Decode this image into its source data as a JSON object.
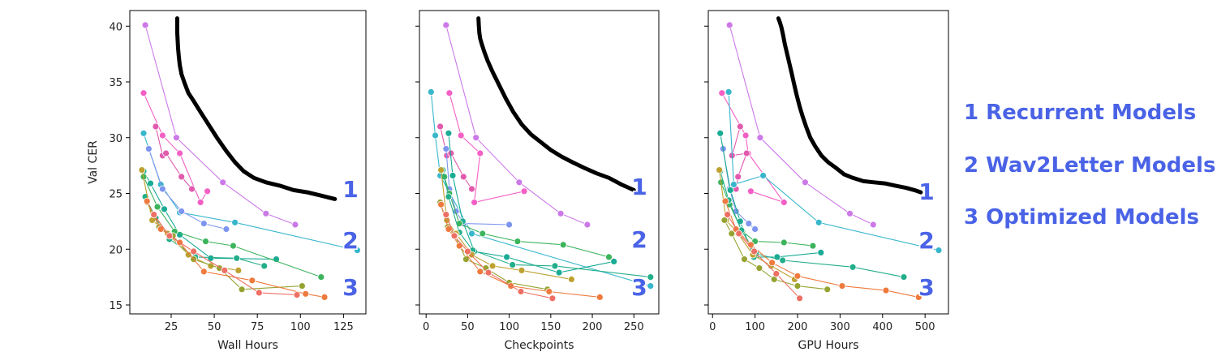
{
  "chart_data": [
    {
      "type": "line",
      "xlabel": "Wall Hours",
      "ylabel": "Val CER",
      "xlim": [
        1,
        138
      ],
      "ylim": [
        14.2,
        41.4
      ],
      "xticks": [
        25,
        50,
        75,
        100,
        125
      ],
      "yticks": [
        15,
        20,
        25,
        30,
        35,
        40
      ],
      "frontier": {
        "color": "#000000",
        "x": [
          28.5,
          28.5,
          29,
          29.5,
          30,
          31,
          33,
          35,
          38,
          42,
          47,
          52,
          57,
          62,
          67,
          73,
          80,
          88,
          96,
          104,
          112,
          120
        ],
        "y": [
          40.7,
          39.5,
          38.0,
          37.2,
          36.5,
          35.7,
          34.8,
          34.0,
          33.3,
          32.3,
          31.1,
          29.9,
          28.8,
          27.8,
          27.0,
          26.4,
          26.0,
          25.7,
          25.3,
          25.1,
          24.8,
          24.5
        ]
      },
      "series": [
        {
          "color": "#cc79e8",
          "x": [
            10,
            28,
            55,
            80,
            97
          ],
          "y": [
            40.1,
            30.0,
            26.0,
            23.2,
            22.2
          ]
        },
        {
          "color": "#f45fc5",
          "x": [
            9,
            20,
            30,
            42,
            46
          ],
          "y": [
            34.0,
            30.2,
            28.6,
            24.2,
            25.2
          ]
        },
        {
          "color": "#e15aae",
          "x": [
            16,
            20,
            22,
            31,
            37
          ],
          "y": [
            31.0,
            28.4,
            28.6,
            26.5,
            25.4
          ]
        },
        {
          "color": "#38b6cc",
          "x": [
            9,
            19,
            30,
            62,
            133
          ],
          "y": [
            30.4,
            25.8,
            23.3,
            22.4,
            19.9
          ]
        },
        {
          "color": "#7d95ee",
          "x": [
            12,
            20,
            31,
            44,
            57
          ],
          "y": [
            29.0,
            25.4,
            23.4,
            22.3,
            21.8
          ]
        },
        {
          "color": "#1aab95",
          "x": [
            9,
            13,
            21,
            30,
            48,
            86
          ],
          "y": [
            27.0,
            25.9,
            23.6,
            21.3,
            19.2,
            19.1
          ]
        },
        {
          "color": "#3cb45c",
          "x": [
            9,
            17,
            27,
            45,
            61,
            112
          ],
          "y": [
            26.5,
            23.8,
            21.6,
            20.7,
            20.3,
            17.5
          ]
        },
        {
          "color": "#23ae8a",
          "x": [
            10,
            16,
            24,
            39,
            63,
            79
          ],
          "y": [
            24.7,
            22.8,
            20.9,
            19.3,
            19.2,
            18.5
          ]
        },
        {
          "color": "#bea131",
          "x": [
            8,
            14,
            23,
            35,
            48,
            64
          ],
          "y": [
            27.1,
            22.6,
            21.4,
            19.5,
            18.5,
            18.1
          ]
        },
        {
          "color": "#96a331",
          "x": [
            11,
            18,
            26,
            38,
            53,
            66,
            101
          ],
          "y": [
            24.2,
            22.0,
            21.2,
            19.1,
            18.3,
            16.4,
            16.7
          ]
        },
        {
          "color": "#ee7a3d",
          "x": [
            11,
            19,
            30,
            44,
            72,
            103,
            114
          ],
          "y": [
            24.3,
            21.8,
            20.6,
            18.0,
            17.2,
            16.0,
            15.7
          ]
        },
        {
          "color": "#ee6f64",
          "x": [
            15,
            24,
            38,
            56,
            76,
            98
          ],
          "y": [
            23.1,
            21.2,
            19.8,
            18.1,
            16.1,
            15.9
          ]
        }
      ]
    },
    {
      "type": "line",
      "xlabel": "Checkpoints",
      "ylabel": "",
      "xlim": [
        -8,
        280
      ],
      "ylim": [
        14.2,
        41.4
      ],
      "xticks": [
        0,
        50,
        100,
        150,
        200,
        250
      ],
      "yticks": [
        15,
        20,
        25,
        30,
        35,
        40
      ],
      "frontier": {
        "color": "#000000",
        "x": [
          63,
          63.5,
          64,
          65,
          67,
          70,
          74,
          80,
          88,
          96,
          105,
          115,
          126,
          138,
          150,
          163,
          176,
          190,
          205,
          220,
          235,
          250
        ],
        "y": [
          40.7,
          40.0,
          39.4,
          38.9,
          38.4,
          37.7,
          36.9,
          35.9,
          34.7,
          33.5,
          32.3,
          31.2,
          30.3,
          29.6,
          28.9,
          28.3,
          27.8,
          27.3,
          26.8,
          26.4,
          25.8,
          25.3
        ]
      },
      "series": [
        {
          "color": "#cc79e8",
          "x": [
            24,
            60,
            112,
            162,
            194
          ],
          "y": [
            40.1,
            30.0,
            26.0,
            23.2,
            22.2
          ]
        },
        {
          "color": "#f45fc5",
          "x": [
            28,
            42,
            65,
            58,
            118
          ],
          "y": [
            34.0,
            30.2,
            28.6,
            24.2,
            25.2
          ]
        },
        {
          "color": "#e15aae",
          "x": [
            17,
            25,
            30,
            45,
            55
          ],
          "y": [
            31.0,
            28.4,
            28.6,
            26.5,
            25.4
          ]
        },
        {
          "color": "#38b6cc",
          "x": [
            6,
            11,
            17,
            55,
            270
          ],
          "y": [
            34.1,
            30.2,
            26.6,
            21.4,
            16.7
          ]
        },
        {
          "color": "#7d95ee",
          "x": [
            24,
            28,
            36,
            45,
            100
          ],
          "y": [
            29.0,
            25.4,
            23.4,
            22.3,
            22.2
          ]
        },
        {
          "color": "#1aab95",
          "x": [
            27,
            32,
            44,
            58,
            97,
            160,
            226
          ],
          "y": [
            30.4,
            26.6,
            22.5,
            19.8,
            19.3,
            17.9,
            18.9
          ]
        },
        {
          "color": "#3cb45c",
          "x": [
            22,
            28,
            40,
            68,
            110,
            165,
            220
          ],
          "y": [
            26.5,
            25.0,
            22.3,
            21.4,
            20.7,
            20.4,
            19.3
          ]
        },
        {
          "color": "#23ae8a",
          "x": [
            20,
            27,
            40,
            56,
            104,
            155,
            270
          ],
          "y": [
            27.1,
            24.7,
            21.5,
            19.9,
            18.6,
            18.5,
            17.5
          ]
        },
        {
          "color": "#bea131",
          "x": [
            18,
            25,
            36,
            55,
            80,
            115,
            175
          ],
          "y": [
            27.1,
            22.6,
            21.4,
            19.5,
            18.5,
            18.1,
            17.3
          ]
        },
        {
          "color": "#96a331",
          "x": [
            17,
            26,
            35,
            48,
            72,
            100,
            146
          ],
          "y": [
            24.2,
            22.0,
            21.2,
            19.1,
            18.3,
            17.0,
            16.4
          ]
        },
        {
          "color": "#ee7a3d",
          "x": [
            18,
            27,
            40,
            65,
            102,
            148,
            209
          ],
          "y": [
            24.0,
            21.8,
            20.3,
            18.0,
            16.7,
            16.2,
            15.7
          ]
        },
        {
          "color": "#ee6f64",
          "x": [
            24,
            34,
            50,
            75,
            114,
            152
          ],
          "y": [
            23.1,
            21.2,
            19.8,
            17.9,
            16.2,
            15.6
          ]
        }
      ]
    },
    {
      "type": "line",
      "xlabel": "GPU Hours",
      "ylabel": "",
      "xlim": [
        -10,
        555
      ],
      "ylim": [
        14.2,
        41.4
      ],
      "xticks": [
        0,
        100,
        200,
        300,
        400,
        500
      ],
      "yticks": [
        15,
        20,
        25,
        30,
        35,
        40
      ],
      "frontier": {
        "color": "#000000",
        "x": [
          155,
          158,
          162,
          166,
          170,
          175,
          180,
          186,
          192,
          198,
          205,
          212,
          220,
          230,
          242,
          256,
          272,
          290,
          310,
          330,
          355,
          380,
          405,
          430,
          455,
          475,
          490
        ],
        "y": [
          40.7,
          40.4,
          39.9,
          39.2,
          38.4,
          37.6,
          36.8,
          35.8,
          34.8,
          33.8,
          32.8,
          31.9,
          31.0,
          30.0,
          29.2,
          28.4,
          27.8,
          27.3,
          26.7,
          26.4,
          26.1,
          26.0,
          25.9,
          25.7,
          25.5,
          25.3,
          25.1
        ]
      },
      "series": [
        {
          "color": "#cc79e8",
          "x": [
            40,
            112,
            218,
            323,
            378
          ],
          "y": [
            40.1,
            30.0,
            26.0,
            23.2,
            22.2
          ]
        },
        {
          "color": "#f45fc5",
          "x": [
            22,
            78,
            84,
            168,
            90
          ],
          "y": [
            34.0,
            30.2,
            28.6,
            24.2,
            25.2
          ]
        },
        {
          "color": "#e15aae",
          "x": [
            65,
            46,
            80,
            60,
            55
          ],
          "y": [
            31.0,
            28.4,
            28.6,
            26.5,
            25.4
          ]
        },
        {
          "color": "#38b6cc",
          "x": [
            38,
            50,
            119,
            250,
            532
          ],
          "y": [
            34.1,
            25.8,
            26.6,
            22.4,
            19.9
          ]
        },
        {
          "color": "#7d95ee",
          "x": [
            25,
            40,
            55,
            85,
            100
          ],
          "y": [
            29.0,
            25.4,
            23.4,
            22.3,
            21.8
          ]
        },
        {
          "color": "#1aab95",
          "x": [
            18,
            42,
            65,
            97,
            152,
            255
          ],
          "y": [
            30.4,
            25.3,
            22.5,
            19.3,
            19.3,
            19.7
          ]
        },
        {
          "color": "#3cb45c",
          "x": [
            20,
            40,
            70,
            100,
            168,
            236
          ],
          "y": [
            26.0,
            24.0,
            21.6,
            20.7,
            20.6,
            20.3
          ]
        },
        {
          "color": "#23ae8a",
          "x": [
            18,
            38,
            68,
            102,
            165,
            330,
            450
          ],
          "y": [
            27.0,
            24.4,
            21.7,
            19.6,
            19.0,
            18.4,
            17.5
          ]
        },
        {
          "color": "#bea131",
          "x": [
            16,
            32,
            60,
            95,
            138,
            193
          ],
          "y": [
            27.1,
            22.6,
            21.4,
            19.5,
            18.5,
            17.3
          ]
        },
        {
          "color": "#96a331",
          "x": [
            28,
            45,
            75,
            110,
            145,
            200,
            270
          ],
          "y": [
            22.6,
            21.4,
            19.1,
            18.3,
            17.3,
            16.7,
            16.4
          ]
        },
        {
          "color": "#ee7a3d",
          "x": [
            30,
            55,
            90,
            140,
            200,
            305,
            408,
            485
          ],
          "y": [
            24.3,
            21.8,
            20.4,
            18.8,
            17.6,
            16.7,
            16.3,
            15.7
          ]
        },
        {
          "color": "#ee6f64",
          "x": [
            35,
            62,
            98,
            150,
            205
          ],
          "y": [
            23.1,
            21.4,
            19.8,
            17.8,
            15.6
          ]
        }
      ]
    }
  ],
  "group_labels": [
    "1",
    "2",
    "3"
  ],
  "legend": {
    "color": "#4a63e6",
    "items": [
      "1 Recurrent Models",
      "2 Wav2Letter Models",
      "3 Optimized Models"
    ]
  }
}
